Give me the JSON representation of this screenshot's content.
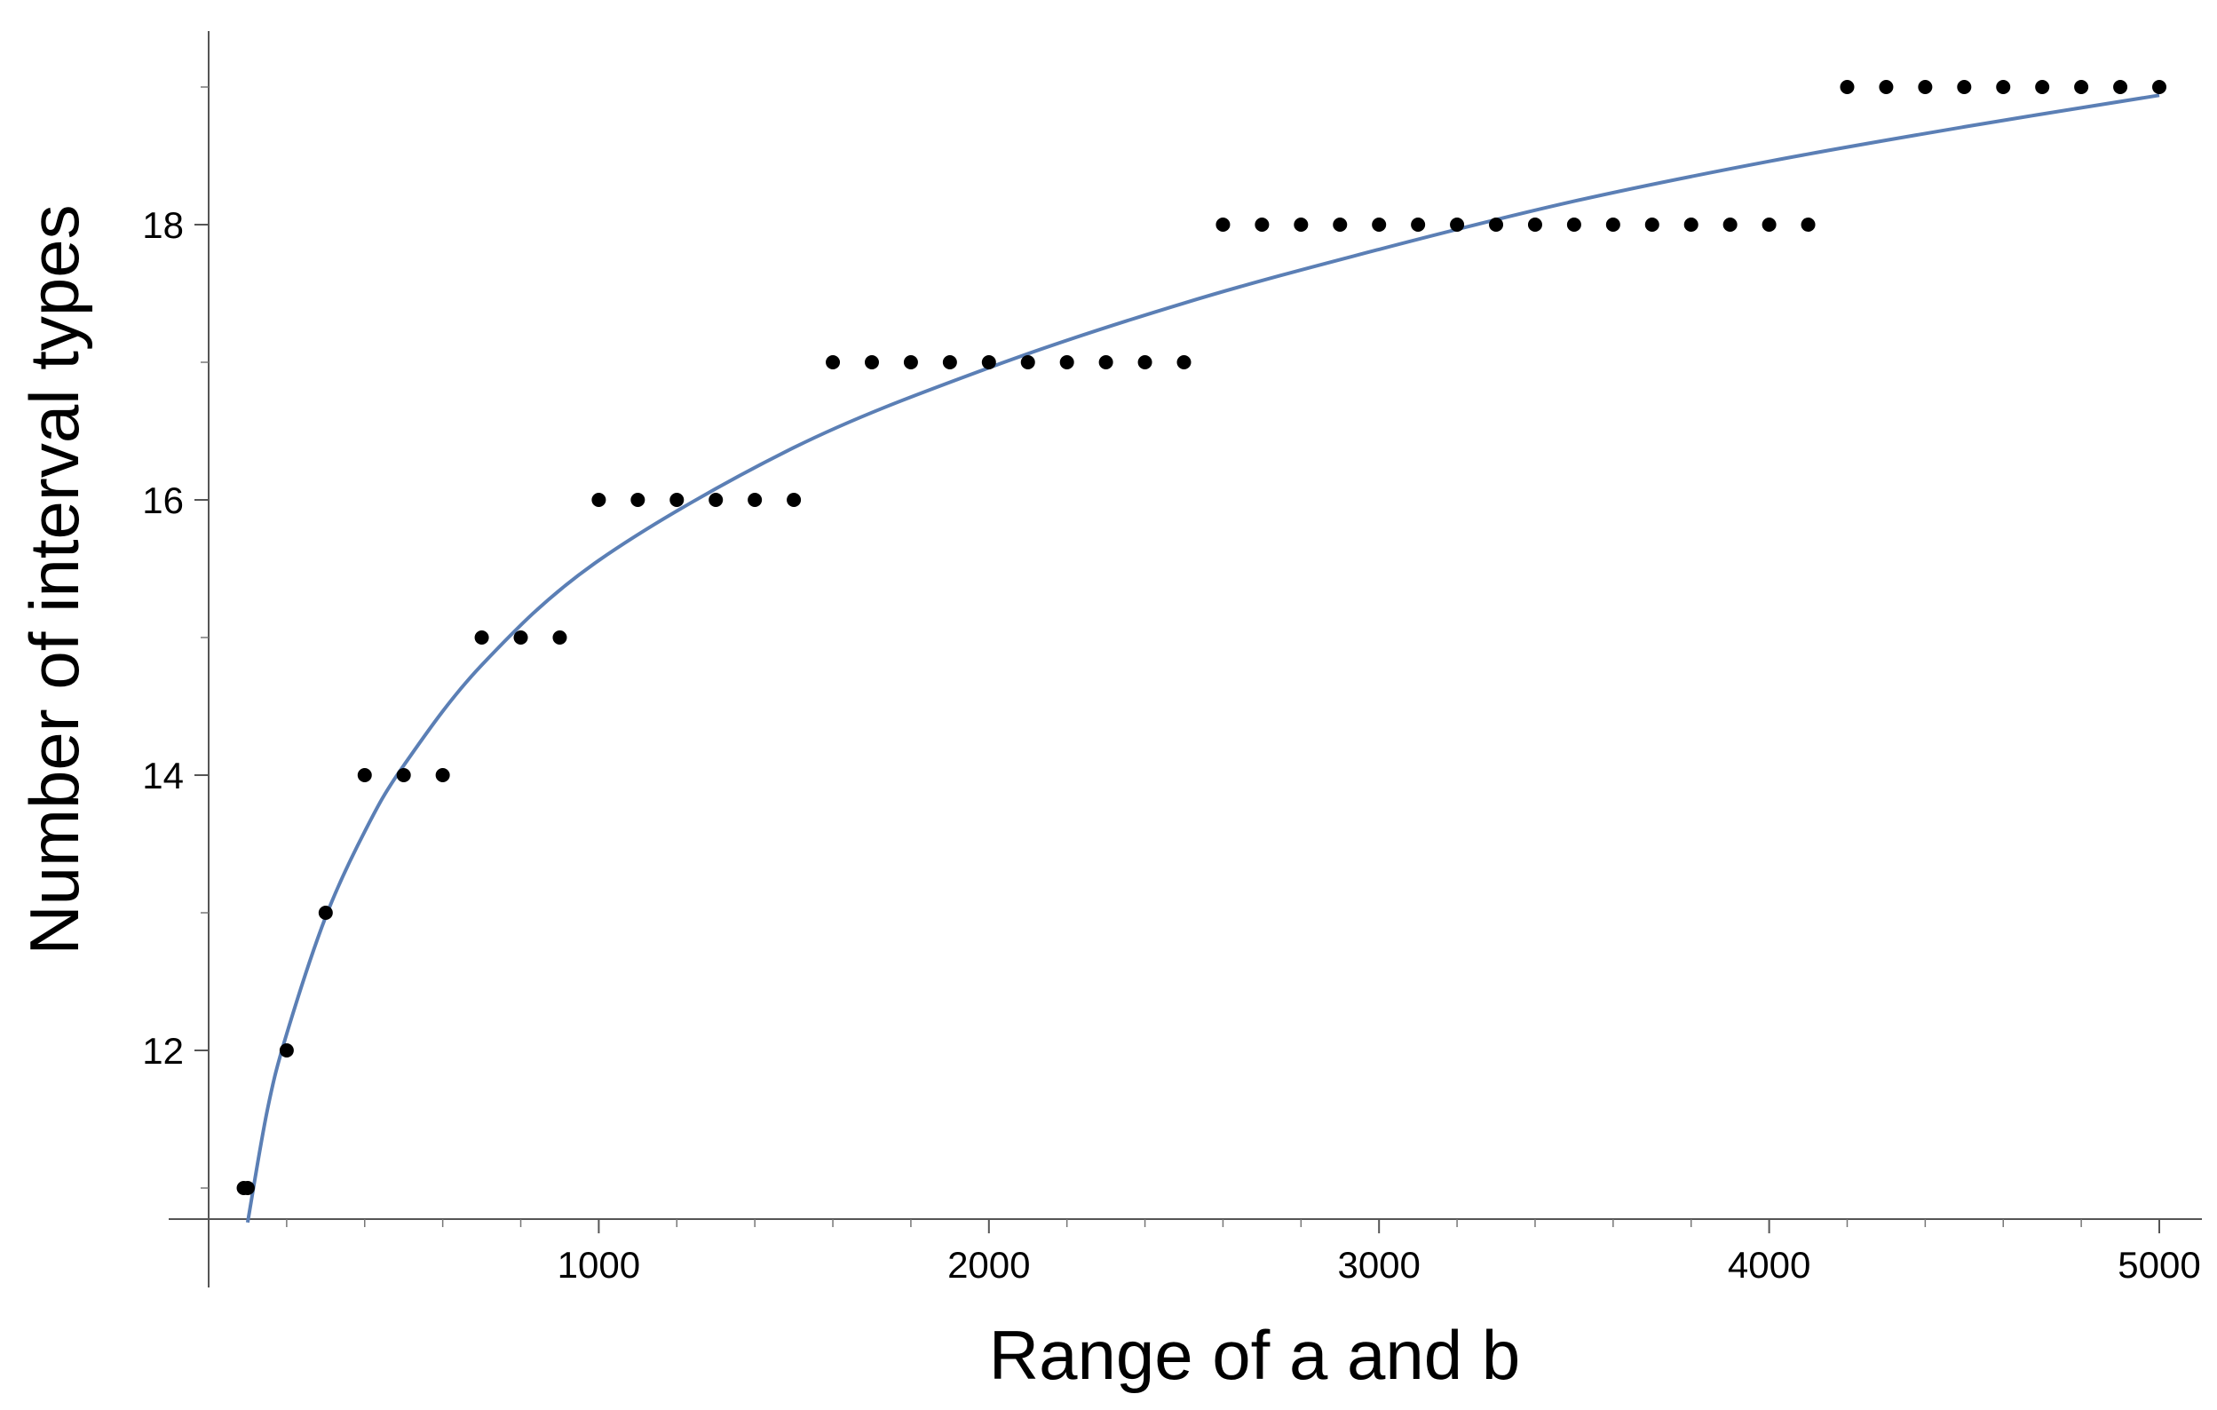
{
  "chart_data": {
    "type": "scatter",
    "xlabel": "Range of a and b",
    "ylabel": "Number of interval types",
    "xlim": [
      0,
      5100
    ],
    "ylim": [
      10.8,
      19.3
    ],
    "x_ticks": [
      1000,
      2000,
      3000,
      4000,
      5000
    ],
    "x_tick_labels": [
      "1000",
      "2000",
      "3000",
      "4000",
      "5000"
    ],
    "x_minor_ticks": [
      200,
      400,
      600,
      800,
      1200,
      1400,
      1600,
      1800,
      2200,
      2400,
      2600,
      2800,
      3200,
      3400,
      3600,
      3800,
      4200,
      4400,
      4600,
      4800
    ],
    "y_ticks": [
      12,
      14,
      16,
      18
    ],
    "y_tick_labels": [
      "12",
      "14",
      "16",
      "18"
    ],
    "y_minor_ticks": [
      11,
      13,
      15,
      17,
      19
    ],
    "grid": false,
    "point_color": "#000000",
    "fit_color": "#5b7fb5",
    "points": {
      "x": [
        90,
        100,
        200,
        300,
        400,
        500,
        600,
        700,
        800,
        900,
        1000,
        1100,
        1200,
        1300,
        1400,
        1500,
        1600,
        1700,
        1800,
        1900,
        2000,
        2100,
        2200,
        2300,
        2400,
        2500,
        2600,
        2700,
        2800,
        2900,
        3000,
        3100,
        3200,
        3300,
        3400,
        3500,
        3600,
        3700,
        3800,
        3900,
        4000,
        4100,
        4200,
        4300,
        4400,
        4500,
        4600,
        4700,
        4800,
        4900,
        5000
      ],
      "y": [
        11,
        11,
        12,
        13,
        14,
        14,
        14,
        15,
        15,
        15,
        16,
        16,
        16,
        16,
        16,
        16,
        17,
        17,
        17,
        17,
        17,
        17,
        17,
        17,
        17,
        17,
        18,
        18,
        18,
        18,
        18,
        18,
        18,
        18,
        18,
        18,
        18,
        18,
        18,
        18,
        18,
        18,
        19,
        19,
        19,
        19,
        19,
        19,
        19,
        19,
        19
      ]
    },
    "fit_curve": {
      "x": [
        100,
        150,
        200,
        300,
        400,
        500,
        700,
        1000,
        1500,
        2000,
        2500,
        3000,
        3500,
        4000,
        4500,
        5000
      ],
      "y": [
        10.75,
        11.56,
        12.12,
        12.97,
        13.59,
        14.07,
        14.8,
        15.56,
        16.38,
        16.96,
        17.43,
        17.82,
        18.17,
        18.46,
        18.71,
        18.94
      ]
    }
  }
}
